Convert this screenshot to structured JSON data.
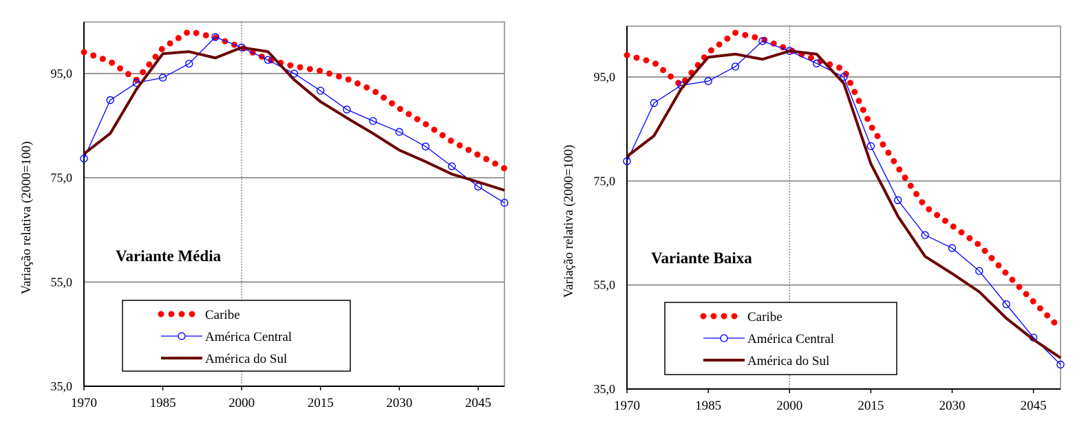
{
  "chart_data": [
    {
      "type": "line",
      "title": "Variante Média",
      "xlabel": "",
      "ylabel": "Variação relativa  (2000=100)",
      "xlim": [
        1970,
        2050
      ],
      "ylim": [
        35,
        105
      ],
      "xticks": [
        "1970",
        "1985",
        "2000",
        "2015",
        "2030",
        "2045"
      ],
      "yticks": [
        "35,0",
        "55,0",
        "75,0",
        "95,0"
      ],
      "grid": "horizontal at y ticks; vertical dotted at 2000",
      "legend": "bottom-left",
      "x": [
        1970,
        1975,
        1980,
        1985,
        1990,
        1995,
        2000,
        2005,
        2010,
        2015,
        2020,
        2025,
        2030,
        2035,
        2040,
        2045,
        2050
      ],
      "series": [
        {
          "name": "Caribe",
          "color": "#ff0000",
          "style": "dotted",
          "values": [
            99.1,
            97.3,
            93.8,
            99.9,
            103.1,
            101.9,
            100.0,
            97.7,
            96.4,
            95.5,
            94.0,
            91.8,
            88.3,
            85.3,
            82.0,
            79.4,
            76.8
          ]
        },
        {
          "name": "América Central",
          "color": "#0000ff",
          "style": "line-circle-markers",
          "values": [
            78.7,
            89.9,
            93.2,
            94.2,
            96.9,
            102.0,
            100.0,
            97.6,
            95.0,
            91.7,
            88.1,
            85.9,
            83.8,
            81.0,
            77.2,
            73.3,
            70.2
          ]
        },
        {
          "name": "América do Sul",
          "color": "#6b0000",
          "style": "thick-line",
          "values": [
            79.6,
            83.5,
            92.0,
            98.8,
            99.2,
            98.0,
            100.0,
            99.2,
            93.8,
            89.6,
            86.5,
            83.5,
            80.3,
            78.1,
            75.7,
            74.2,
            72.6
          ]
        }
      ]
    },
    {
      "type": "line",
      "title": "Variante Baixa",
      "xlabel": "",
      "ylabel": "Variação relativa  (2000=100)",
      "xlim": [
        1970,
        2050
      ],
      "ylim": [
        35,
        105
      ],
      "xticks": [
        "1970",
        "1985",
        "2000",
        "2015",
        "2030",
        "2045"
      ],
      "yticks": [
        "35,0",
        "55,0",
        "75,0",
        "95,0"
      ],
      "grid": "horizontal at y ticks; vertical dotted at 2000",
      "legend": "bottom-left",
      "x": [
        1970,
        1975,
        1980,
        1985,
        1990,
        1995,
        2000,
        2005,
        2010,
        2015,
        2020,
        2025,
        2030,
        2035,
        2040,
        2045,
        2050
      ],
      "series": [
        {
          "name": "Caribe",
          "color": "#ff0000",
          "style": "dotted",
          "values": [
            99.2,
            97.8,
            93.4,
            99.7,
            103.5,
            102.3,
            100.2,
            98.3,
            96.5,
            85.6,
            77.6,
            70.1,
            66.4,
            62.7,
            57.2,
            51.8,
            46.6
          ]
        },
        {
          "name": "América Central",
          "color": "#0000ff",
          "style": "line-circle-markers",
          "values": [
            78.8,
            90.0,
            93.4,
            94.2,
            97.0,
            101.9,
            100.0,
            97.6,
            95.0,
            81.7,
            71.3,
            64.6,
            62.1,
            57.7,
            51.3,
            44.9,
            39.7
          ]
        },
        {
          "name": "América do Sul",
          "color": "#6b0000",
          "style": "thick-line",
          "values": [
            79.7,
            83.7,
            92.7,
            98.8,
            99.4,
            98.4,
            100.0,
            99.4,
            93.8,
            78.3,
            68.2,
            60.5,
            57.2,
            53.7,
            48.6,
            44.5,
            41.0
          ]
        }
      ]
    }
  ]
}
